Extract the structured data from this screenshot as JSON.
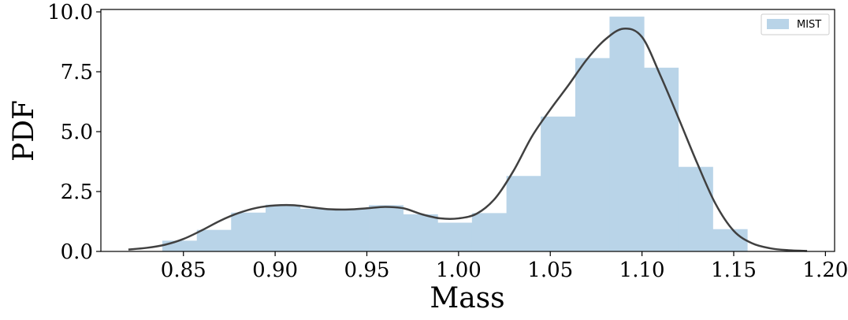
{
  "chart_data": {
    "type": "bar",
    "xlabel": "Mass",
    "ylabel": "PDF",
    "xlim": [
      0.805,
      1.205
    ],
    "ylim": [
      0.0,
      10.1
    ],
    "xticks": [
      "0.85",
      "0.90",
      "0.95",
      "1.00",
      "1.05",
      "1.10",
      "1.15",
      "1.20"
    ],
    "yticks": [
      "0.0",
      "2.5",
      "5.0",
      "7.5",
      "10.0"
    ],
    "bin_edges": [
      0.8385,
      0.8573,
      0.876,
      0.8948,
      0.9136,
      0.9323,
      0.9511,
      0.9698,
      0.9886,
      1.0073,
      1.0261,
      1.0448,
      1.0636,
      1.0823,
      1.1011,
      1.1198,
      1.1386,
      1.1574
    ],
    "series": [
      {
        "name": "MIST",
        "type": "histogram",
        "color": "#b9d4e8",
        "values": [
          0.45,
          0.9,
          1.62,
          1.95,
          1.78,
          1.78,
          1.93,
          1.55,
          1.2,
          1.6,
          3.15,
          5.63,
          8.07,
          9.8,
          7.67,
          3.53,
          0.93
        ]
      },
      {
        "type": "kde",
        "color": "#404040",
        "x": [
          0.82,
          0.83,
          0.84,
          0.85,
          0.86,
          0.87,
          0.88,
          0.89,
          0.9,
          0.91,
          0.92,
          0.93,
          0.94,
          0.95,
          0.96,
          0.97,
          0.98,
          0.99,
          1.0,
          1.01,
          1.02,
          1.03,
          1.04,
          1.05,
          1.06,
          1.07,
          1.08,
          1.09,
          1.1,
          1.11,
          1.12,
          1.13,
          1.14,
          1.15,
          1.16,
          1.17,
          1.18,
          1.19
        ],
        "y": [
          0.08,
          0.15,
          0.28,
          0.52,
          0.88,
          1.28,
          1.6,
          1.82,
          1.92,
          1.93,
          1.84,
          1.76,
          1.75,
          1.8,
          1.86,
          1.8,
          1.55,
          1.38,
          1.38,
          1.58,
          2.22,
          3.37,
          4.8,
          5.92,
          6.95,
          8.02,
          8.85,
          9.3,
          8.95,
          7.35,
          5.55,
          3.7,
          2.0,
          0.86,
          0.34,
          0.13,
          0.05,
          0.02
        ]
      }
    ],
    "legend_position": "top-right"
  }
}
